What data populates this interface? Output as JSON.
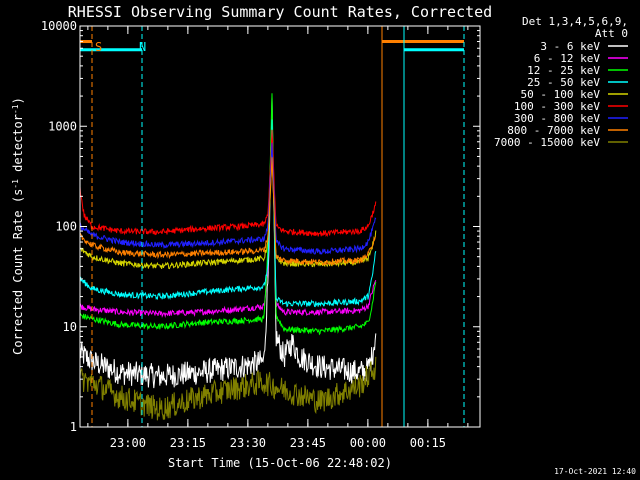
{
  "chart_data": {
    "type": "line",
    "title": "RHESSI Observing Summary Count Rates, Corrected",
    "xlabel": "Start Time (15-Oct-06 22:48:02)",
    "ylabel_pre": "Corrected Count Rate (s",
    "ylabel_sup1": "-1",
    "ylabel_mid": " detector",
    "ylabel_sup2": "-1",
    "ylabel_post": ")",
    "yscale": "log",
    "ylim": [
      1,
      10000
    ],
    "xlim_minutes_after_start": [
      0,
      100
    ],
    "x_ticks": [
      "23:00",
      "23:15",
      "23:30",
      "23:45",
      "00:00",
      "00:15"
    ],
    "y_ticks": [
      "1",
      "10",
      "100",
      "1000",
      "10000"
    ],
    "legend_title_1": "Det 1,3,4,5,6,9,",
    "legend_title_2": "Att 0",
    "legend_position": "right",
    "series": [
      {
        "name": "3 - 6 keV",
        "color": "#ffffff",
        "profile": [
          [
            0,
            5.5
          ],
          [
            3,
            4.5
          ],
          [
            10,
            3.5
          ],
          [
            20,
            3.2
          ],
          [
            30,
            3.5
          ],
          [
            40,
            4
          ],
          [
            46,
            4.5
          ],
          [
            47,
            30
          ],
          [
            48,
            1500
          ],
          [
            49,
            8
          ],
          [
            51,
            5
          ],
          [
            53,
            7
          ],
          [
            55,
            5
          ],
          [
            60,
            4
          ],
          [
            70,
            3.5
          ],
          [
            72,
            3.8
          ],
          [
            73,
            5
          ],
          [
            74,
            9
          ]
        ]
      },
      {
        "name": "6 - 12 keV",
        "color": "#ff00ff",
        "profile": [
          [
            0,
            16
          ],
          [
            3,
            15
          ],
          [
            10,
            14
          ],
          [
            20,
            13.5
          ],
          [
            30,
            14
          ],
          [
            40,
            15
          ],
          [
            46,
            16
          ],
          [
            47,
            40
          ],
          [
            48,
            1600
          ],
          [
            49,
            17
          ],
          [
            51,
            14
          ],
          [
            60,
            14
          ],
          [
            70,
            14.5
          ],
          [
            72,
            16
          ],
          [
            73,
            22
          ],
          [
            74,
            30
          ]
        ]
      },
      {
        "name": "12 - 25 keV",
        "color": "#00ff00",
        "profile": [
          [
            0,
            13
          ],
          [
            3,
            12
          ],
          [
            10,
            10.5
          ],
          [
            20,
            10
          ],
          [
            30,
            11
          ],
          [
            40,
            11.5
          ],
          [
            46,
            12
          ],
          [
            47,
            60
          ],
          [
            48,
            2000
          ],
          [
            49,
            13
          ],
          [
            51,
            9.5
          ],
          [
            60,
            9
          ],
          [
            70,
            10
          ],
          [
            72,
            11
          ],
          [
            73,
            16
          ],
          [
            74,
            30
          ]
        ]
      },
      {
        "name": "25 - 50 keV",
        "color": "#00ffff",
        "profile": [
          [
            0,
            30
          ],
          [
            3,
            24
          ],
          [
            10,
            21
          ],
          [
            20,
            20
          ],
          [
            30,
            22
          ],
          [
            40,
            24
          ],
          [
            46,
            25
          ],
          [
            47,
            40
          ],
          [
            48,
            1100
          ],
          [
            49,
            19
          ],
          [
            51,
            17
          ],
          [
            60,
            17
          ],
          [
            70,
            18
          ],
          [
            72,
            20
          ],
          [
            73,
            30
          ],
          [
            74,
            60
          ]
        ]
      },
      {
        "name": "50 - 100 keV",
        "color": "#d4d400",
        "profile": [
          [
            0,
            60
          ],
          [
            3,
            50
          ],
          [
            10,
            43
          ],
          [
            20,
            40
          ],
          [
            30,
            43
          ],
          [
            40,
            46
          ],
          [
            46,
            48
          ],
          [
            47,
            70
          ],
          [
            48,
            500
          ],
          [
            49,
            48
          ],
          [
            51,
            43
          ],
          [
            60,
            42
          ],
          [
            70,
            44
          ],
          [
            72,
            48
          ],
          [
            73,
            60
          ],
          [
            74,
            90
          ]
        ]
      },
      {
        "name": "100 - 300 keV",
        "color": "#ff0000",
        "profile": [
          [
            0,
            240
          ],
          [
            1,
            130
          ],
          [
            3,
            100
          ],
          [
            10,
            90
          ],
          [
            20,
            88
          ],
          [
            30,
            95
          ],
          [
            40,
            100
          ],
          [
            46,
            105
          ],
          [
            47,
            130
          ],
          [
            48,
            900
          ],
          [
            49,
            100
          ],
          [
            51,
            90
          ],
          [
            60,
            85
          ],
          [
            70,
            90
          ],
          [
            72,
            100
          ],
          [
            73,
            130
          ],
          [
            74,
            170
          ]
        ]
      },
      {
        "name": "300 - 800 keV",
        "color": "#2020ff",
        "profile": [
          [
            0,
            100
          ],
          [
            3,
            82
          ],
          [
            10,
            70
          ],
          [
            20,
            65
          ],
          [
            30,
            68
          ],
          [
            40,
            72
          ],
          [
            46,
            75
          ],
          [
            47,
            100
          ],
          [
            48,
            700
          ],
          [
            49,
            70
          ],
          [
            51,
            60
          ],
          [
            60,
            56
          ],
          [
            70,
            60
          ],
          [
            72,
            70
          ],
          [
            73,
            90
          ],
          [
            74,
            120
          ]
        ]
      },
      {
        "name": "800 - 7000 keV",
        "color": "#ff8000",
        "profile": [
          [
            0,
            80
          ],
          [
            3,
            65
          ],
          [
            10,
            55
          ],
          [
            20,
            52
          ],
          [
            30,
            54
          ],
          [
            40,
            56
          ],
          [
            46,
            58
          ],
          [
            47,
            80
          ],
          [
            48,
            500
          ],
          [
            49,
            50
          ],
          [
            51,
            46
          ],
          [
            60,
            44
          ],
          [
            70,
            46
          ],
          [
            72,
            52
          ],
          [
            73,
            65
          ],
          [
            74,
            85
          ]
        ]
      },
      {
        "name": "7000 - 15000 keV",
        "color": "#808000",
        "profile": [
          [
            0,
            3
          ],
          [
            3,
            2.8
          ],
          [
            10,
            2
          ],
          [
            20,
            1.5
          ],
          [
            30,
            2
          ],
          [
            40,
            2.5
          ],
          [
            46,
            2.8
          ],
          [
            49,
            2.5
          ],
          [
            60,
            1.8
          ],
          [
            70,
            2.6
          ],
          [
            74,
            4
          ]
        ]
      }
    ],
    "annotations": [
      {
        "text": "S",
        "color": "#ff8000",
        "x_minutes": 3
      },
      {
        "text": "N",
        "color": "#00ffff",
        "x_minutes": 14
      }
    ],
    "flag_bars": [
      {
        "color": "#ff8000",
        "from_minutes": 0,
        "to_minutes": 3,
        "level": 7000
      },
      {
        "color": "#00ffff",
        "from_minutes": 0,
        "to_minutes": 15.5,
        "level": 5800
      },
      {
        "color": "#ff8000",
        "from_minutes": 75.5,
        "to_minutes": 96,
        "level": 7000
      },
      {
        "color": "#00ffff",
        "from_minutes": 81,
        "to_minutes": 96,
        "level": 5800
      }
    ],
    "vertical_markers": [
      {
        "color": "#00ffff",
        "x_minutes": 0,
        "style": "solid"
      },
      {
        "color": "#ff8000",
        "x_minutes": 3,
        "style": "dashed"
      },
      {
        "color": "#00ffff",
        "x_minutes": 15.5,
        "style": "dashed"
      },
      {
        "color": "#ff8000",
        "x_minutes": 75.5,
        "style": "solid"
      },
      {
        "color": "#00ffff",
        "x_minutes": 81,
        "style": "solid"
      },
      {
        "color": "#ff8000",
        "x_minutes": 96,
        "style": "dashed"
      },
      {
        "color": "#00ffff",
        "x_minutes": 96,
        "style": "dashed"
      }
    ]
  },
  "footer_timestamp": "17-Oct-2021 12:40"
}
